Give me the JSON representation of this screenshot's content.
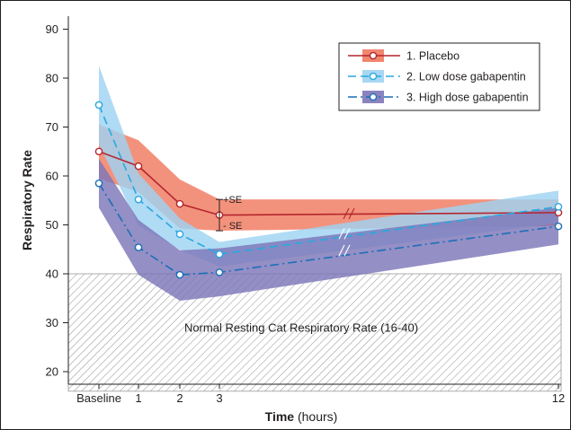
{
  "chart_data": {
    "type": "line",
    "title": "",
    "ylabel": "Respiratory Rate",
    "xlabel_bold": "Time",
    "xlabel_rest": " (hours)",
    "ylim": [
      15,
      90
    ],
    "y_ticks": [
      20,
      30,
      40,
      50,
      60,
      70,
      80,
      90
    ],
    "x_ticks": [
      {
        "label": "Baseline",
        "hours": -1
      },
      {
        "label": "1",
        "hours": 1
      },
      {
        "label": "2",
        "hours": 2
      },
      {
        "label": "3",
        "hours": 3
      },
      {
        "label": "12",
        "hours": 12
      }
    ],
    "x_axis_note": "axis is broken between 3 and 12 hours",
    "grid": false,
    "legend_position": "top-right",
    "series": [
      {
        "name": "1. Placebo",
        "color": "#b4262e",
        "band_color": "#f07a5f",
        "line_style": "solid",
        "x": [
          -1,
          1,
          2,
          3,
          12
        ],
        "y": [
          65,
          62,
          54.3,
          52,
          52.5
        ],
        "upper": [
          70.5,
          67.3,
          59.3,
          55.2,
          55.2
        ],
        "lower": [
          59.5,
          56.7,
          49.3,
          48.8,
          49.8
        ]
      },
      {
        "name": "2. Low dose gabapentin",
        "color": "#29a8e0",
        "band_color": "#9fd3f2",
        "line_style": "dash",
        "x": [
          -1,
          1,
          2,
          3,
          12
        ],
        "y": [
          74.5,
          55.2,
          48.1,
          44,
          53.7
        ],
        "upper": [
          82.5,
          60.5,
          51.3,
          46.5,
          57
        ],
        "lower": [
          66.5,
          49.9,
          44.9,
          41.5,
          50.4
        ]
      },
      {
        "name": "3. High dose gabapentin",
        "color": "#1b6fb7",
        "band_color": "#7d76b8",
        "line_style": "dashdot",
        "x": [
          -1,
          1,
          2,
          3,
          12
        ],
        "y": [
          58.5,
          45.4,
          39.8,
          40.3,
          49.7
        ],
        "upper": [
          63.5,
          51,
          44.8,
          45.2,
          53.5
        ],
        "lower": [
          53.5,
          39.8,
          34.5,
          35.4,
          46
        ]
      }
    ],
    "normal_range": {
      "low": 16,
      "high": 40,
      "label": "Normal Resting Cat Respiratory Rate (16-40)"
    },
    "se_annotation": {
      "hours": 3,
      "upper_label": "+SE",
      "lower_label": "- SE"
    }
  }
}
